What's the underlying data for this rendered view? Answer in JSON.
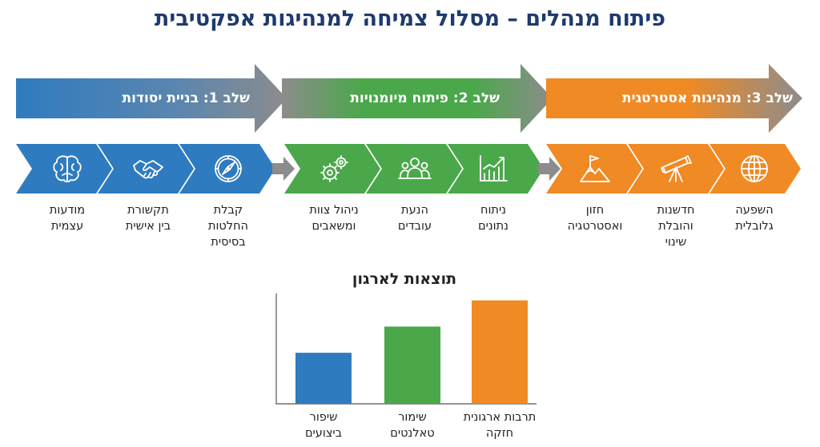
{
  "title": "פיתוח מנהלים – מסלול צמיחה למנהיגות אפקטיבית",
  "colors": {
    "blue": "#2f7bbf",
    "green": "#4aa84a",
    "orange": "#f08a24",
    "gray": "#8c8c8c",
    "title": "#1e3a6e"
  },
  "stages": [
    {
      "label": "שלב 1: בניית יסודות",
      "color": "#2f7bbf",
      "steps": [
        {
          "icon": "brain-icon",
          "lines": [
            "מודעות",
            "עצמית"
          ]
        },
        {
          "icon": "handshake-icon",
          "lines": [
            "תקשורת",
            "בין אישית"
          ]
        },
        {
          "icon": "compass-icon",
          "lines": [
            "קבלת",
            "החלטות",
            "בסיסית"
          ]
        }
      ]
    },
    {
      "label": "שלב 2: פיתוח מיומנויות",
      "color": "#4aa84a",
      "steps": [
        {
          "icon": "gears-icon",
          "lines": [
            "ניהול צוות",
            "ומשאבים"
          ]
        },
        {
          "icon": "team-icon",
          "lines": [
            "הנעת",
            "עובדים"
          ]
        },
        {
          "icon": "growth-chart-icon",
          "lines": [
            "ניתוח",
            "נתונים"
          ]
        }
      ]
    },
    {
      "label": "שלב 3: מנהיגות אסטרטגית",
      "color": "#f08a24",
      "steps": [
        {
          "icon": "mountain-flag-icon",
          "lines": [
            "חזון",
            "ואסטרטגיה"
          ]
        },
        {
          "icon": "telescope-icon",
          "lines": [
            "חדשנות",
            "והובלת",
            "שינוי"
          ]
        },
        {
          "icon": "globe-icon",
          "lines": [
            "השפעה",
            "גלובלית"
          ]
        }
      ]
    }
  ],
  "chart_data": {
    "type": "bar",
    "title": "תוצאות לארגון",
    "categories": [
      "שיפור ביצועים",
      "שימור טאלנטים",
      "תרבות ארגונית חזקה"
    ],
    "category_lines": [
      [
        "שיפור",
        "ביצועים"
      ],
      [
        "שימור",
        "טאלנטים"
      ],
      [
        "תרבות ארגונית",
        "חזקה"
      ]
    ],
    "values": [
      37,
      56,
      75
    ],
    "colors": [
      "#2f7bbf",
      "#4aa84a",
      "#f08a24"
    ],
    "ylim": [
      0,
      80
    ],
    "grid": false,
    "ylabel": "",
    "xlabel": ""
  }
}
